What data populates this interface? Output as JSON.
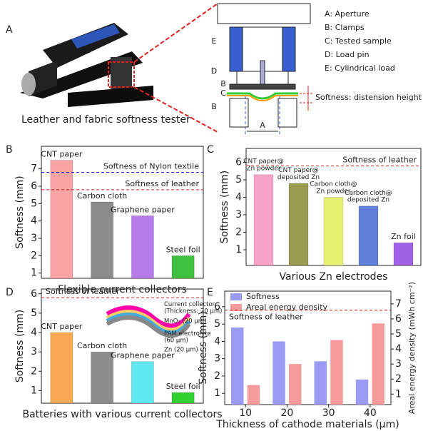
{
  "diagram": {
    "panel": "A",
    "caption": "Leather and fabric softness tester",
    "legend": [
      "A:  Aperture",
      "B:  Clamps",
      "C:  Tested sample",
      "D:  Load pin",
      "E:  Cylindrical load"
    ],
    "callout": "Softness: distension height",
    "schematic_labels": [
      "E",
      "D",
      "B",
      "C",
      "B",
      "A"
    ]
  },
  "chart_data": [
    {
      "type": "bar",
      "panel": "B",
      "ylabel": "Softness (mm)",
      "xlabel": "Flexible current collectors",
      "categories": [
        "CNT paper",
        "Carbon cloth",
        "Graphene paper",
        "Steel foil"
      ],
      "values": [
        7.5,
        5.1,
        4.3,
        2.0
      ],
      "colors": [
        "#f7a3a3",
        "#8c8c8c",
        "#b77be8",
        "#3fc13f"
      ],
      "ylim": [
        0.7,
        8.3
      ],
      "yticks": [
        1,
        2,
        3,
        4,
        5,
        6,
        7
      ],
      "ref_lines": [
        {
          "label": "Softness of Nylon textile",
          "value": 6.8,
          "color": "#2a2ad0"
        },
        {
          "label": "Softness of leather",
          "value": 5.8,
          "color": "#d02020"
        }
      ]
    },
    {
      "type": "bar",
      "panel": "C",
      "ylabel": "Softness (mm)",
      "xlabel": "Various Zn electrodes",
      "categories": [
        "CNT paper@\nZn powder",
        "CNT paper@\ndeposited Zn",
        "Carbon cloth@\nZn powder",
        "Carbon cloth@\ndeposited Zn",
        "Zn foil"
      ],
      "values": [
        5.3,
        4.8,
        4.0,
        3.5,
        1.4
      ],
      "colors": [
        "#f7a3c8",
        "#9a9a50",
        "#e8f070",
        "#5f7fd8",
        "#a060e8"
      ],
      "ylim": [
        0.1,
        6.8
      ],
      "yticks": [
        1,
        2,
        3,
        4,
        5,
        6
      ],
      "ref_lines": [
        {
          "label": "Softness of leather",
          "value": 5.8,
          "color": "#d02020"
        }
      ]
    },
    {
      "type": "bar",
      "panel": "D",
      "ylabel": "Softness (mm)",
      "xlabel": "Batteries with various current collectors",
      "categories": [
        "CNT paper",
        "Carbon cloth",
        "Graphene paper",
        "Steel foil"
      ],
      "values": [
        4.0,
        3.0,
        2.5,
        0.9
      ],
      "colors": [
        "#f7a850",
        "#8c8c8c",
        "#60e8f0",
        "#30d030"
      ],
      "ylim": [
        0.35,
        6.25
      ],
      "yticks": [
        1,
        2,
        3,
        4,
        5,
        6
      ],
      "ref_lines": [
        {
          "label": "Softness of leather",
          "value": 5.8,
          "color": "#d02020"
        }
      ],
      "inset_labels": [
        "Current collector\n(Thickness: 20 μm)",
        "MnO₂ (20 μm)",
        "PAM electrolyte\n(60 μm)",
        "Zn (20 μm)"
      ]
    },
    {
      "type": "bar",
      "panel": "E",
      "ylabel": "Softness (mm)",
      "xlabel": "Thickness of cathode materials (μm)",
      "y2label": "Areal energy density (mWh cm⁻²)",
      "categories": [
        "10",
        "20",
        "30",
        "40"
      ],
      "series": [
        {
          "name": "Softness",
          "color": "#9b9bf5",
          "values": [
            4.8,
            4.0,
            2.85,
            1.8
          ]
        },
        {
          "name": "Areal energy density",
          "color": "#f59b9b",
          "axis": "y2",
          "values": [
            1.6,
            3.0,
            4.6,
            5.7
          ]
        }
      ],
      "ylim": [
        0.35,
        6.9
      ],
      "yticks": [
        1,
        2,
        3,
        4,
        5,
        6
      ],
      "y2lim": [
        0.3,
        7.85
      ],
      "y2ticks": [
        1,
        2,
        3,
        4,
        5,
        6,
        7
      ],
      "ref_lines": [
        {
          "label": "Softness of leather",
          "value": 5.8,
          "color": "#d02020"
        }
      ],
      "legend": "upper-left"
    }
  ]
}
